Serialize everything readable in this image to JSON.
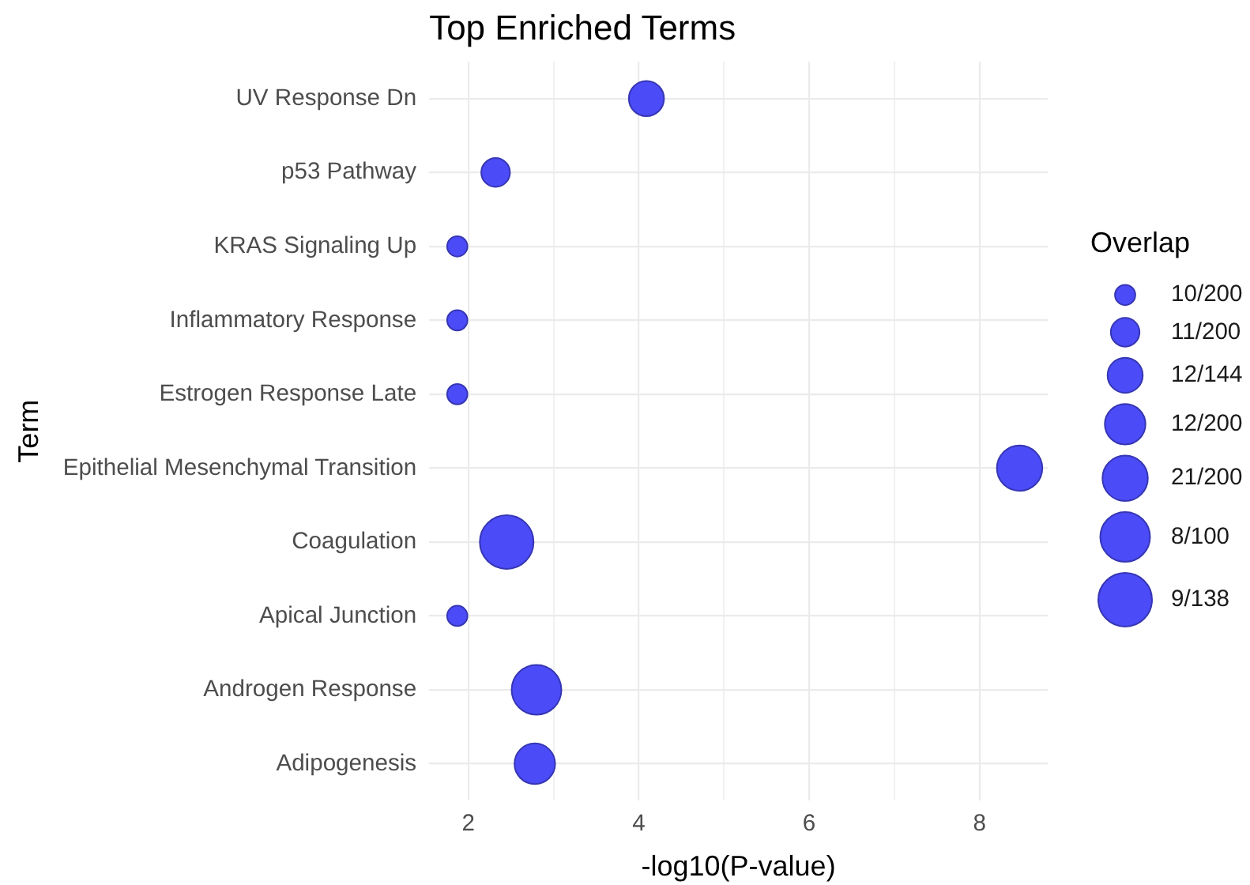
{
  "chart_data": {
    "type": "bubble",
    "title": "Top Enriched Terms",
    "xlabel": "-log10(P-value)",
    "ylabel": "Term",
    "legend_title": "Overlap",
    "orientation": "horizontal",
    "categories": [
      "UV Response Dn",
      "p53 Pathway",
      "KRAS Signaling Up",
      "Inflammatory Response",
      "Estrogen Response Late",
      "Epithelial Mesenchymal Transition",
      "Coagulation",
      "Apical Junction",
      "Androgen Response",
      "Adipogenesis"
    ],
    "values": [
      4.09,
      2.32,
      1.87,
      1.87,
      1.87,
      8.47,
      2.45,
      1.87,
      2.8,
      2.78
    ],
    "sizes": [
      3,
      2,
      1,
      1,
      1,
      5,
      7,
      1,
      6,
      4
    ],
    "size_legend": [
      {
        "value": 1,
        "label": "10/200"
      },
      {
        "value": 2,
        "label": "11/200"
      },
      {
        "value": 3,
        "label": "12/144"
      },
      {
        "value": 4,
        "label": "12/200"
      },
      {
        "value": 5,
        "label": "21/200"
      },
      {
        "value": 6,
        "label": "8/100"
      },
      {
        "value": 7,
        "label": "9/138"
      }
    ],
    "color": "#4b4bf8",
    "xlim": [
      1.54,
      8.8
    ],
    "xticks": [
      2,
      {
        "value": 3,
        "label": null
      },
      4,
      {
        "value": 5,
        "label": null
      },
      6,
      {
        "value": 7,
        "label": null
      },
      8
    ],
    "grid": true
  }
}
